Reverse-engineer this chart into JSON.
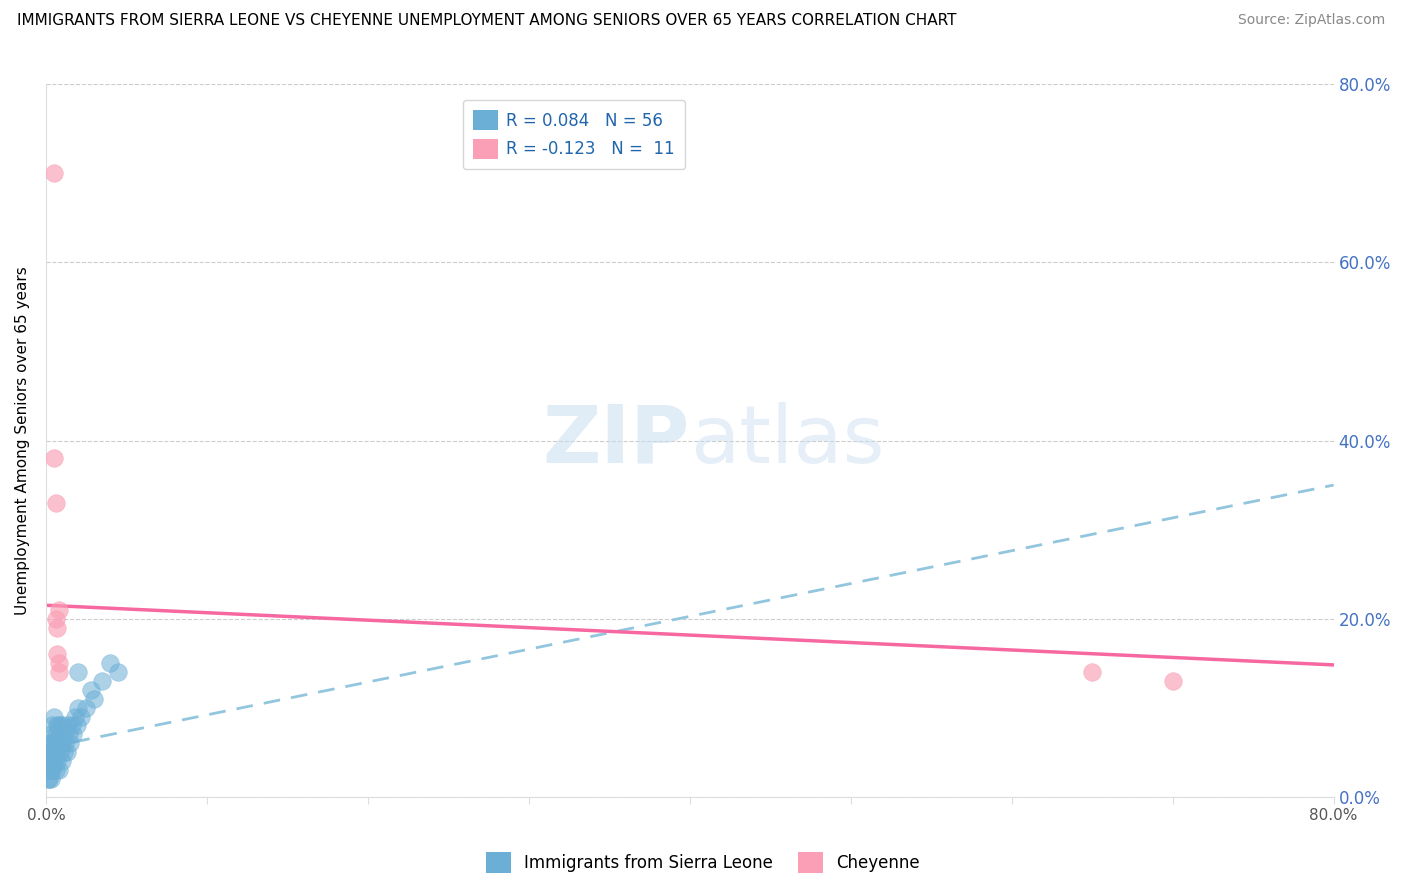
{
  "title": "IMMIGRANTS FROM SIERRA LEONE VS CHEYENNE UNEMPLOYMENT AMONG SENIORS OVER 65 YEARS CORRELATION CHART",
  "source": "Source: ZipAtlas.com",
  "ylabel": "Unemployment Among Seniors over 65 years",
  "xlim": [
    0,
    0.8
  ],
  "ylim": [
    0,
    0.8
  ],
  "x_ticks": [
    0.0,
    0.1,
    0.2,
    0.3,
    0.4,
    0.5,
    0.6,
    0.7,
    0.8
  ],
  "x_tick_labels": [
    "0.0%",
    "",
    "",
    "",
    "",
    "",
    "",
    "",
    "80.0%"
  ],
  "y_ticks_right": [
    0.0,
    0.2,
    0.4,
    0.6,
    0.8
  ],
  "y_tick_labels_right": [
    "0.0%",
    "20.0%",
    "40.0%",
    "60.0%",
    "80.0%"
  ],
  "legend_R_blue": "R = 0.084",
  "legend_N_blue": "N = 56",
  "legend_R_pink": "R = -0.123",
  "legend_N_pink": "N =  11",
  "legend_label_blue": "Immigrants from Sierra Leone",
  "legend_label_pink": "Cheyenne",
  "blue_color": "#6baed6",
  "pink_color": "#fa9fb5",
  "blue_line_color": "#92c5de",
  "pink_line_color": "#f768a1",
  "watermark_zip": "ZIP",
  "watermark_atlas": "atlas",
  "blue_scatter_x": [
    0.001,
    0.001,
    0.001,
    0.002,
    0.002,
    0.002,
    0.002,
    0.002,
    0.003,
    0.003,
    0.003,
    0.003,
    0.003,
    0.003,
    0.004,
    0.004,
    0.004,
    0.004,
    0.005,
    0.005,
    0.005,
    0.005,
    0.006,
    0.006,
    0.006,
    0.007,
    0.007,
    0.007,
    0.008,
    0.008,
    0.008,
    0.009,
    0.009,
    0.01,
    0.01,
    0.01,
    0.011,
    0.011,
    0.012,
    0.013,
    0.013,
    0.014,
    0.015,
    0.016,
    0.017,
    0.018,
    0.019,
    0.02,
    0.022,
    0.025,
    0.028,
    0.03,
    0.035,
    0.04,
    0.045,
    0.02
  ],
  "blue_scatter_y": [
    0.02,
    0.03,
    0.04,
    0.02,
    0.03,
    0.04,
    0.05,
    0.06,
    0.02,
    0.03,
    0.04,
    0.05,
    0.06,
    0.07,
    0.03,
    0.04,
    0.05,
    0.08,
    0.04,
    0.05,
    0.06,
    0.09,
    0.03,
    0.05,
    0.07,
    0.04,
    0.06,
    0.08,
    0.03,
    0.06,
    0.08,
    0.05,
    0.07,
    0.04,
    0.06,
    0.08,
    0.05,
    0.07,
    0.06,
    0.05,
    0.08,
    0.07,
    0.06,
    0.08,
    0.07,
    0.09,
    0.08,
    0.1,
    0.09,
    0.1,
    0.12,
    0.11,
    0.13,
    0.15,
    0.14,
    0.14
  ],
  "pink_scatter_x": [
    0.005,
    0.005,
    0.006,
    0.006,
    0.007,
    0.007,
    0.008,
    0.008,
    0.008,
    0.65,
    0.7
  ],
  "pink_scatter_y": [
    0.7,
    0.38,
    0.33,
    0.2,
    0.19,
    0.16,
    0.15,
    0.14,
    0.21,
    0.14,
    0.13
  ],
  "blue_trend_x": [
    0.0,
    0.8
  ],
  "blue_trend_y_start": 0.055,
  "blue_trend_y_end": 0.35,
  "pink_trend_x": [
    0.0,
    0.8
  ],
  "pink_trend_y_start": 0.215,
  "pink_trend_y_end": 0.148
}
